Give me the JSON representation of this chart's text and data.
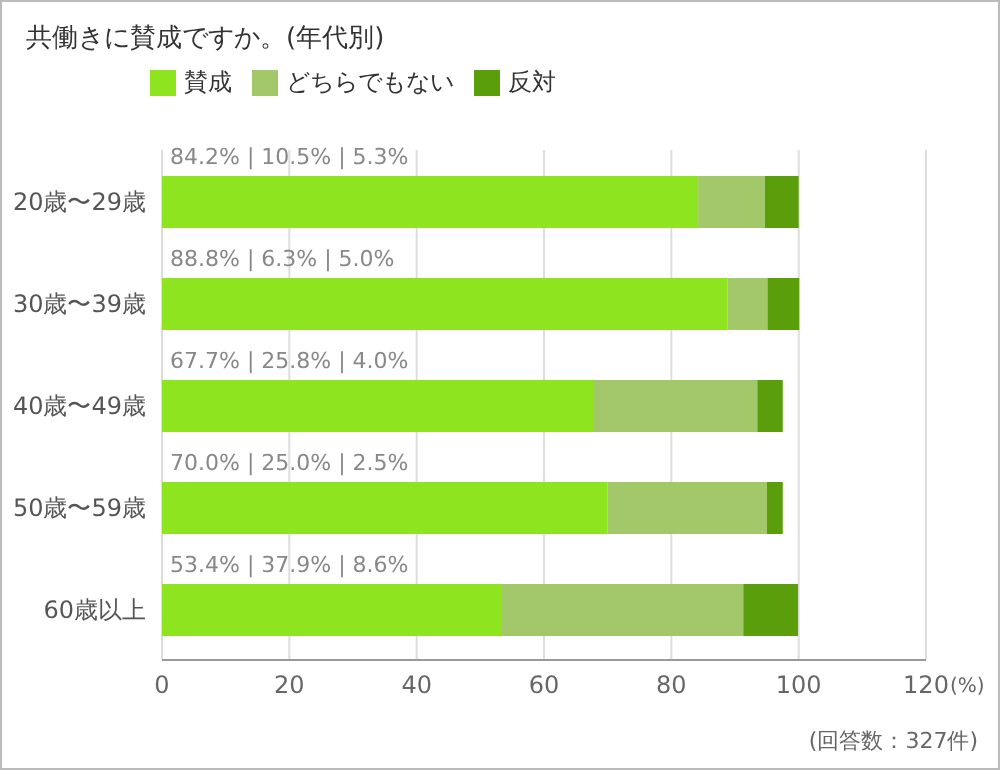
{
  "chart_data": {
    "type": "bar",
    "orientation": "horizontal",
    "stacked": true,
    "title": "共働きに賛成ですか。(年代別)",
    "xlabel": "(%)",
    "categories": [
      "20歳〜29歳",
      "30歳〜39歳",
      "40歳〜49歳",
      "50歳〜59歳",
      "60歳以上"
    ],
    "series": [
      {
        "name": "賛成",
        "color": "#8ee41e",
        "values": [
          84.2,
          88.8,
          67.7,
          70.0,
          53.4
        ],
        "value_labels": [
          "84.2% | 10.5% | 5.3%",
          "88.8% | 6.3% | 5.0%",
          "67.7% | 25.8% | 4.0%",
          "70.0% | 25.0% | 2.5%",
          "53.4% | 37.9% | 8.6%"
        ]
      },
      {
        "name": "どちらでもない",
        "color": "#a3c86a",
        "values": [
          10.5,
          6.3,
          25.8,
          25.0,
          37.9
        ]
      },
      {
        "name": "反対",
        "color": "#5a9e0c",
        "values": [
          5.3,
          5.0,
          4.0,
          2.5,
          8.6
        ]
      }
    ],
    "xlim": [
      0,
      120
    ],
    "xticks": [
      0,
      20,
      40,
      60,
      80,
      100,
      120
    ],
    "grid": "x",
    "legend": "top left",
    "annotations": [
      "(回答数：327件)"
    ]
  }
}
